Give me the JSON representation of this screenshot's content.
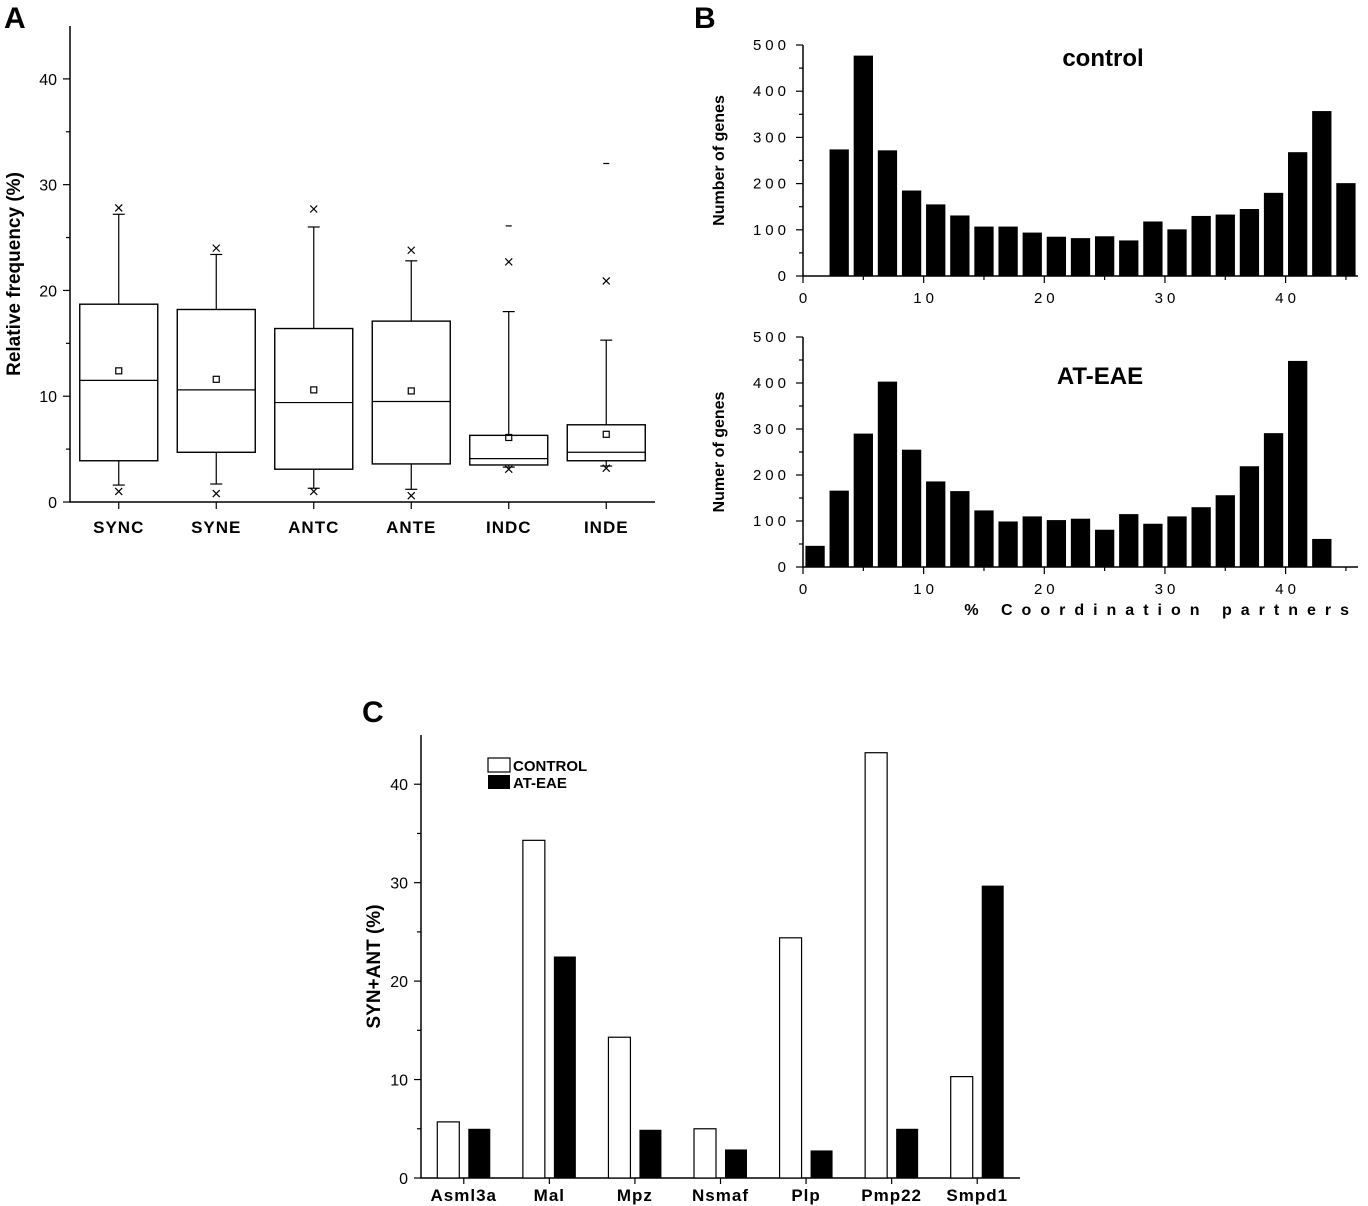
{
  "chart_data": [
    {
      "panel": "A",
      "type": "box",
      "ylabel": "Relative frequency (%)",
      "ylim": [
        0,
        45
      ],
      "yticks": [
        0,
        10,
        20,
        30,
        40
      ],
      "categories": [
        "SYNC",
        "SYNE",
        "ANTC",
        "ANTE",
        "INDC",
        "INDE"
      ],
      "boxes": [
        {
          "name": "SYNC",
          "q1": 3.9,
          "median": 11.5,
          "q3": 18.7,
          "mean": 12.4,
          "whisker_low": 1.6,
          "whisker_high": 27.2,
          "extreme_low": 1.0,
          "extreme_high": 27.8
        },
        {
          "name": "SYNE",
          "q1": 4.7,
          "median": 10.6,
          "q3": 18.2,
          "mean": 11.6,
          "whisker_low": 1.7,
          "whisker_high": 23.4,
          "extreme_low": 0.8,
          "extreme_high": 24.0
        },
        {
          "name": "ANTC",
          "q1": 3.1,
          "median": 9.4,
          "q3": 16.4,
          "mean": 10.6,
          "whisker_low": 1.3,
          "whisker_high": 26.0,
          "extreme_low": 1.0,
          "extreme_high": 27.7
        },
        {
          "name": "ANTE",
          "q1": 3.6,
          "median": 9.5,
          "q3": 17.1,
          "mean": 10.5,
          "whisker_low": 1.2,
          "whisker_high": 22.8,
          "extreme_low": 0.6,
          "extreme_high": 23.8
        },
        {
          "name": "INDC",
          "q1": 3.5,
          "median": 4.1,
          "q3": 6.3,
          "mean": 6.1,
          "whisker_low": 3.3,
          "whisker_high": 18.0,
          "extreme_low": 3.1,
          "extreme_high": 22.7,
          "outlier": 26.1
        },
        {
          "name": "INDE",
          "q1": 3.9,
          "median": 4.7,
          "q3": 7.3,
          "mean": 6.4,
          "whisker_low": 3.4,
          "whisker_high": 15.3,
          "extreme_low": 3.2,
          "extreme_high": 20.9,
          "outlier": 32.0
        }
      ]
    },
    {
      "panel": "B",
      "type": "bar",
      "title": "control",
      "ylabel": "Number of genes",
      "xlabel": "",
      "xlim": [
        0,
        46
      ],
      "ylim": [
        0,
        500
      ],
      "xticks": [
        0,
        10,
        20,
        30,
        40
      ],
      "yticks": [
        0,
        100,
        200,
        300,
        400,
        500
      ],
      "x": [
        1,
        3,
        5,
        7,
        9,
        11,
        13,
        15,
        17,
        19,
        21,
        23,
        25,
        27,
        29,
        31,
        33,
        35,
        37,
        39,
        41,
        43,
        45
      ],
      "values": [
        0,
        274,
        477,
        272,
        185,
        155,
        131,
        107,
        107,
        94,
        85,
        82,
        86,
        77,
        118,
        101,
        130,
        133,
        145,
        180,
        268,
        357,
        201
      ]
    },
    {
      "panel": "B",
      "type": "bar",
      "title": "AT-EAE",
      "ylabel": "Numer of genes",
      "xlabel": "% Coordination partners",
      "xlim": [
        0,
        46
      ],
      "ylim": [
        0,
        500
      ],
      "xticks": [
        0,
        10,
        20,
        30,
        40
      ],
      "yticks": [
        0,
        100,
        200,
        300,
        400,
        500
      ],
      "x": [
        1,
        3,
        5,
        7,
        9,
        11,
        13,
        15,
        17,
        19,
        21,
        23,
        25,
        27,
        29,
        31,
        33,
        35,
        37,
        39,
        41,
        43
      ],
      "values": [
        46,
        166,
        290,
        403,
        255,
        186,
        165,
        123,
        99,
        110,
        102,
        105,
        81,
        115,
        94,
        110,
        130,
        156,
        219,
        291,
        448,
        61
      ]
    },
    {
      "panel": "C",
      "type": "bar",
      "ylabel": "SYN+ANT (%)",
      "ylim": [
        0,
        45
      ],
      "yticks": [
        0,
        10,
        20,
        30,
        40
      ],
      "categories": [
        "Asml3a",
        "Mal",
        "Mpz",
        "Nsmaf",
        "Plp",
        "Pmp22",
        "Smpd1"
      ],
      "series": [
        {
          "name": "CONTROL",
          "color": "#ffffff",
          "values": [
            5.7,
            34.3,
            14.3,
            5.0,
            24.4,
            43.2,
            10.3
          ]
        },
        {
          "name": "AT-EAE",
          "color": "#000000",
          "values": [
            5.0,
            22.5,
            4.9,
            2.9,
            2.8,
            5.0,
            29.7
          ]
        }
      ]
    }
  ],
  "labels": {
    "panel_a": "A",
    "panel_b": "B",
    "panel_c": "C"
  }
}
